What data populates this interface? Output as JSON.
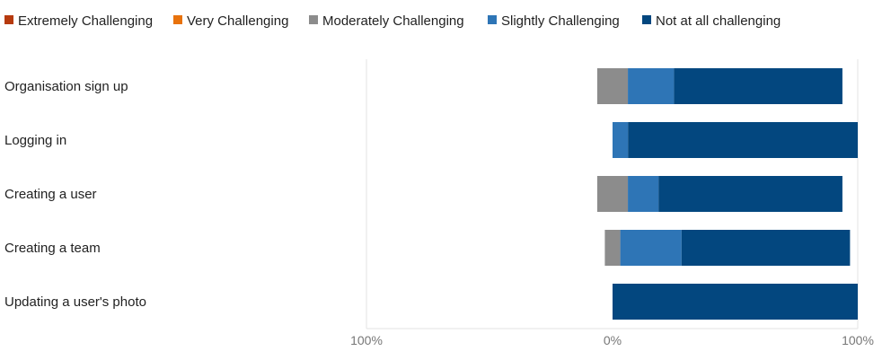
{
  "chart_data": {
    "type": "bar",
    "orientation": "horizontal",
    "stacked": "diverging",
    "title": "",
    "xlabel": "",
    "ylabel": "",
    "xlim": [
      -100,
      100
    ],
    "xtick_labels": [
      "100%",
      "0%",
      "100%"
    ],
    "grid": false,
    "legend_position": "top",
    "categories": [
      "Organisation sign up",
      "Logging in",
      "Creating a user",
      "Creating a team",
      "Updating a user's photo"
    ],
    "series": [
      {
        "name": "Extremely Challenging",
        "color": "#b63a0e",
        "values": [
          0,
          0,
          0,
          0,
          0
        ]
      },
      {
        "name": "Very Challenging",
        "color": "#e8720c",
        "values": [
          0,
          0,
          0,
          0,
          0
        ]
      },
      {
        "name": "Moderately Challenging",
        "color": "#8c8c8c",
        "values": [
          12.5,
          0,
          12.5,
          6.3,
          0
        ]
      },
      {
        "name": "Slightly Challenging",
        "color": "#2e75b6",
        "values": [
          18.8,
          6.3,
          12.5,
          25,
          0
        ]
      },
      {
        "name": "Not at all challenging",
        "color": "#03477f",
        "values": [
          68.7,
          93.7,
          75,
          68.7,
          100
        ]
      }
    ]
  }
}
